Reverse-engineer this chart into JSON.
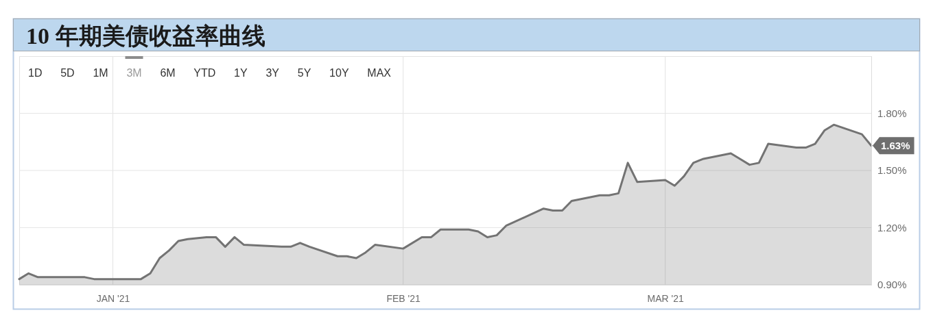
{
  "chart_data": {
    "type": "area",
    "title": "10 年期美债收益率曲线",
    "x": [
      "2020-12-22",
      "2020-12-23",
      "2020-12-24",
      "2020-12-29",
      "2020-12-30",
      "2021-01-04",
      "2021-01-05",
      "2021-01-06",
      "2021-01-07",
      "2021-01-08",
      "2021-01-09",
      "2021-01-11",
      "2021-01-12",
      "2021-01-13",
      "2021-01-14",
      "2021-01-15",
      "2021-01-19",
      "2021-01-20",
      "2021-01-21",
      "2021-01-22",
      "2021-01-25",
      "2021-01-26",
      "2021-01-27",
      "2021-01-28",
      "2021-01-29",
      "2021-02-01",
      "2021-02-03",
      "2021-02-04",
      "2021-02-05",
      "2021-02-08",
      "2021-02-09",
      "2021-02-10",
      "2021-02-11",
      "2021-02-12",
      "2021-02-16",
      "2021-02-17",
      "2021-02-18",
      "2021-02-19",
      "2021-02-20",
      "2021-02-22",
      "2021-02-23",
      "2021-02-24",
      "2021-02-25",
      "2021-02-26",
      "2021-03-01",
      "2021-03-02",
      "2021-03-03",
      "2021-03-04",
      "2021-03-05",
      "2021-03-08",
      "2021-03-09",
      "2021-03-10",
      "2021-03-11",
      "2021-03-12",
      "2021-03-15",
      "2021-03-16",
      "2021-03-17",
      "2021-03-18",
      "2021-03-19",
      "2021-03-22",
      "2021-03-23"
    ],
    "values": [
      0.93,
      0.96,
      0.94,
      0.94,
      0.93,
      0.93,
      0.96,
      1.04,
      1.08,
      1.13,
      1.14,
      1.15,
      1.15,
      1.1,
      1.15,
      1.11,
      1.1,
      1.1,
      1.12,
      1.1,
      1.05,
      1.05,
      1.04,
      1.07,
      1.11,
      1.09,
      1.15,
      1.15,
      1.19,
      1.19,
      1.18,
      1.15,
      1.16,
      1.21,
      1.3,
      1.29,
      1.29,
      1.34,
      1.35,
      1.37,
      1.37,
      1.38,
      1.54,
      1.44,
      1.45,
      1.42,
      1.47,
      1.54,
      1.56,
      1.59,
      1.56,
      1.53,
      1.54,
      1.64,
      1.62,
      1.62,
      1.64,
      1.71,
      1.74,
      1.69,
      1.63
    ],
    "value_labels": [
      null,
      null,
      null,
      null,
      null,
      null,
      null,
      null,
      null,
      null,
      null,
      null,
      null,
      null,
      null,
      null,
      null,
      null,
      null,
      null,
      null,
      null,
      null,
      null,
      null,
      null,
      null,
      null,
      null,
      null,
      null,
      null,
      null,
      null,
      null,
      null,
      null,
      null,
      null,
      null,
      null,
      null,
      null,
      null,
      null,
      null,
      null,
      null,
      null,
      null,
      null,
      null,
      null,
      null,
      null,
      null,
      null,
      null,
      null,
      null,
      "1.63%"
    ],
    "color": "#737373",
    "xlim": [
      "2020-12-22",
      "2021-03-23"
    ],
    "xticks": [
      {
        "value": "2021-01-01",
        "label": "JAN '21"
      },
      {
        "value": "2021-02-01",
        "label": "FEB '21"
      },
      {
        "value": "2021-03-01",
        "label": "MAR '21"
      }
    ],
    "ylim": [
      0.9,
      2.1
    ],
    "yticks": [
      {
        "value": 0.9,
        "label": "0.90%"
      },
      {
        "value": 1.2,
        "label": "1.20%"
      },
      {
        "value": 1.5,
        "label": "1.50%"
      },
      {
        "value": 1.8,
        "label": "1.80%"
      }
    ],
    "grid": true,
    "annotations": [
      "1D",
      "5D",
      "1M",
      "3M",
      "6M",
      "YTD",
      "1Y",
      "3Y",
      "5Y",
      "10Y",
      "MAX"
    ]
  }
}
